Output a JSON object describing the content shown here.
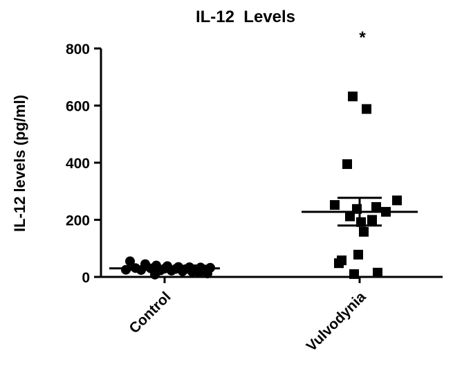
{
  "chart_data": {
    "type": "scatter",
    "title": "IL-12  Levels",
    "ylabel": "IL-12 levels (pg/ml)",
    "xlabel": "",
    "ylim": [
      0,
      800
    ],
    "yticks": [
      0,
      200,
      400,
      600,
      800
    ],
    "categories": [
      "Control",
      "Vulvodynia"
    ],
    "groups": [
      {
        "category": "Control",
        "marker": "circle",
        "color": "#000000",
        "values": [
          55,
          45,
          40,
          38,
          35,
          34,
          33,
          32,
          31,
          30,
          29,
          28,
          27,
          27,
          26,
          25,
          24,
          23,
          22,
          20,
          18,
          15,
          12,
          8
        ],
        "mean": 30,
        "sem_upper": 35,
        "sem_lower": 25
      },
      {
        "category": "Vulvodynia",
        "marker": "square",
        "color": "#000000",
        "values": [
          632,
          588,
          395,
          268,
          252,
          245,
          238,
          228,
          212,
          200,
          192,
          158,
          78,
          58,
          48,
          15,
          10
        ],
        "mean": 228,
        "sem_upper": 277,
        "sem_lower": 180
      }
    ],
    "annotations": [
      {
        "text": "*",
        "category": "Vulvodynia",
        "position": "above-group"
      }
    ],
    "grid": false,
    "legend": "none"
  }
}
